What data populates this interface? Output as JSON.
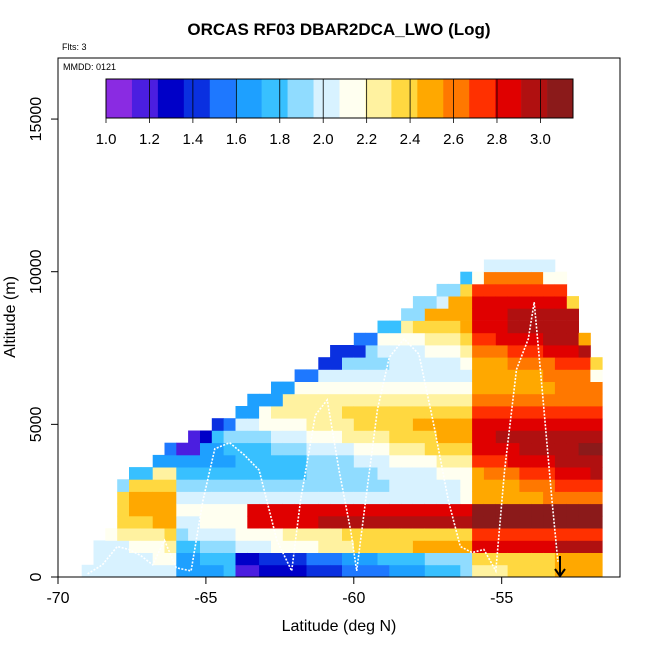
{
  "chart_data": {
    "type": "heatmap",
    "title": "ORCAS RF03 DBAR2DCA_LWO (Log)",
    "xlabel": "Latitude (deg N)",
    "ylabel": "Altitude (m)",
    "xlim": [
      -70,
      -51
    ],
    "ylim": [
      0,
      17000
    ],
    "xticks": [
      -70,
      -65,
      -60,
      -55
    ],
    "yticks": [
      0,
      5000,
      10000,
      15000
    ],
    "annotations": {
      "flights": "Flts: 3",
      "mmdd": "MMDD: 0121"
    },
    "colorbar": {
      "min": 1.0,
      "max": 3.15,
      "tick_values": [
        1.0,
        1.2,
        1.4,
        1.6,
        1.8,
        2.0,
        2.2,
        2.4,
        2.6,
        2.8,
        3.0
      ],
      "tick_labels": [
        "1.0",
        "1.2",
        "1.4",
        "1.6",
        "1.8",
        "2.0",
        "2.2",
        "2.4",
        "2.6",
        "2.8",
        "3.0"
      ],
      "colors": [
        "#8a2be2",
        "#4b1ee0",
        "#0000c8",
        "#0a30e0",
        "#1e78ff",
        "#1ea0ff",
        "#38c0ff",
        "#90dcff",
        "#d8f2ff",
        "#fffff0",
        "#fff2a0",
        "#ffd840",
        "#ffa800",
        "#ff7800",
        "#ff3000",
        "#e00000",
        "#b01010",
        "#8b1a1a"
      ]
    },
    "grid": {
      "lat_min": -69.2,
      "lat_max": -51.8,
      "lat_step": 0.4,
      "alt_max": 10800,
      "alt_step": 400
    },
    "flight_track": [
      [
        -69.0,
        100
      ],
      [
        -68.5,
        400
      ],
      [
        -68.0,
        1000
      ],
      [
        -67.6,
        900
      ],
      [
        -67.2,
        700
      ],
      [
        -66.8,
        400
      ],
      [
        -66.4,
        1200
      ],
      [
        -66.0,
        300
      ],
      [
        -65.5,
        200
      ],
      [
        -65.1,
        2500
      ],
      [
        -64.7,
        4200
      ],
      [
        -64.2,
        4400
      ],
      [
        -63.7,
        4000
      ],
      [
        -63.2,
        3500
      ],
      [
        -62.6,
        1200
      ],
      [
        -62.1,
        200
      ],
      [
        -61.8,
        2500
      ],
      [
        -61.3,
        5300
      ],
      [
        -60.9,
        5800
      ],
      [
        -60.5,
        3500
      ],
      [
        -60.1,
        1500
      ],
      [
        -59.9,
        200
      ],
      [
        -59.6,
        2500
      ],
      [
        -59.2,
        5500
      ],
      [
        -58.8,
        7200
      ],
      [
        -58.3,
        7800
      ],
      [
        -57.8,
        7300
      ],
      [
        -57.3,
        5000
      ],
      [
        -56.8,
        2500
      ],
      [
        -56.4,
        1000
      ],
      [
        -56.0,
        800
      ],
      [
        -55.6,
        900
      ],
      [
        -55.2,
        200
      ],
      [
        -54.9,
        3500
      ],
      [
        -54.5,
        6800
      ],
      [
        -54.1,
        7800
      ],
      [
        -53.9,
        9000
      ],
      [
        -53.6,
        5800
      ],
      [
        -53.3,
        2500
      ],
      [
        -53.1,
        500
      ]
    ]
  }
}
